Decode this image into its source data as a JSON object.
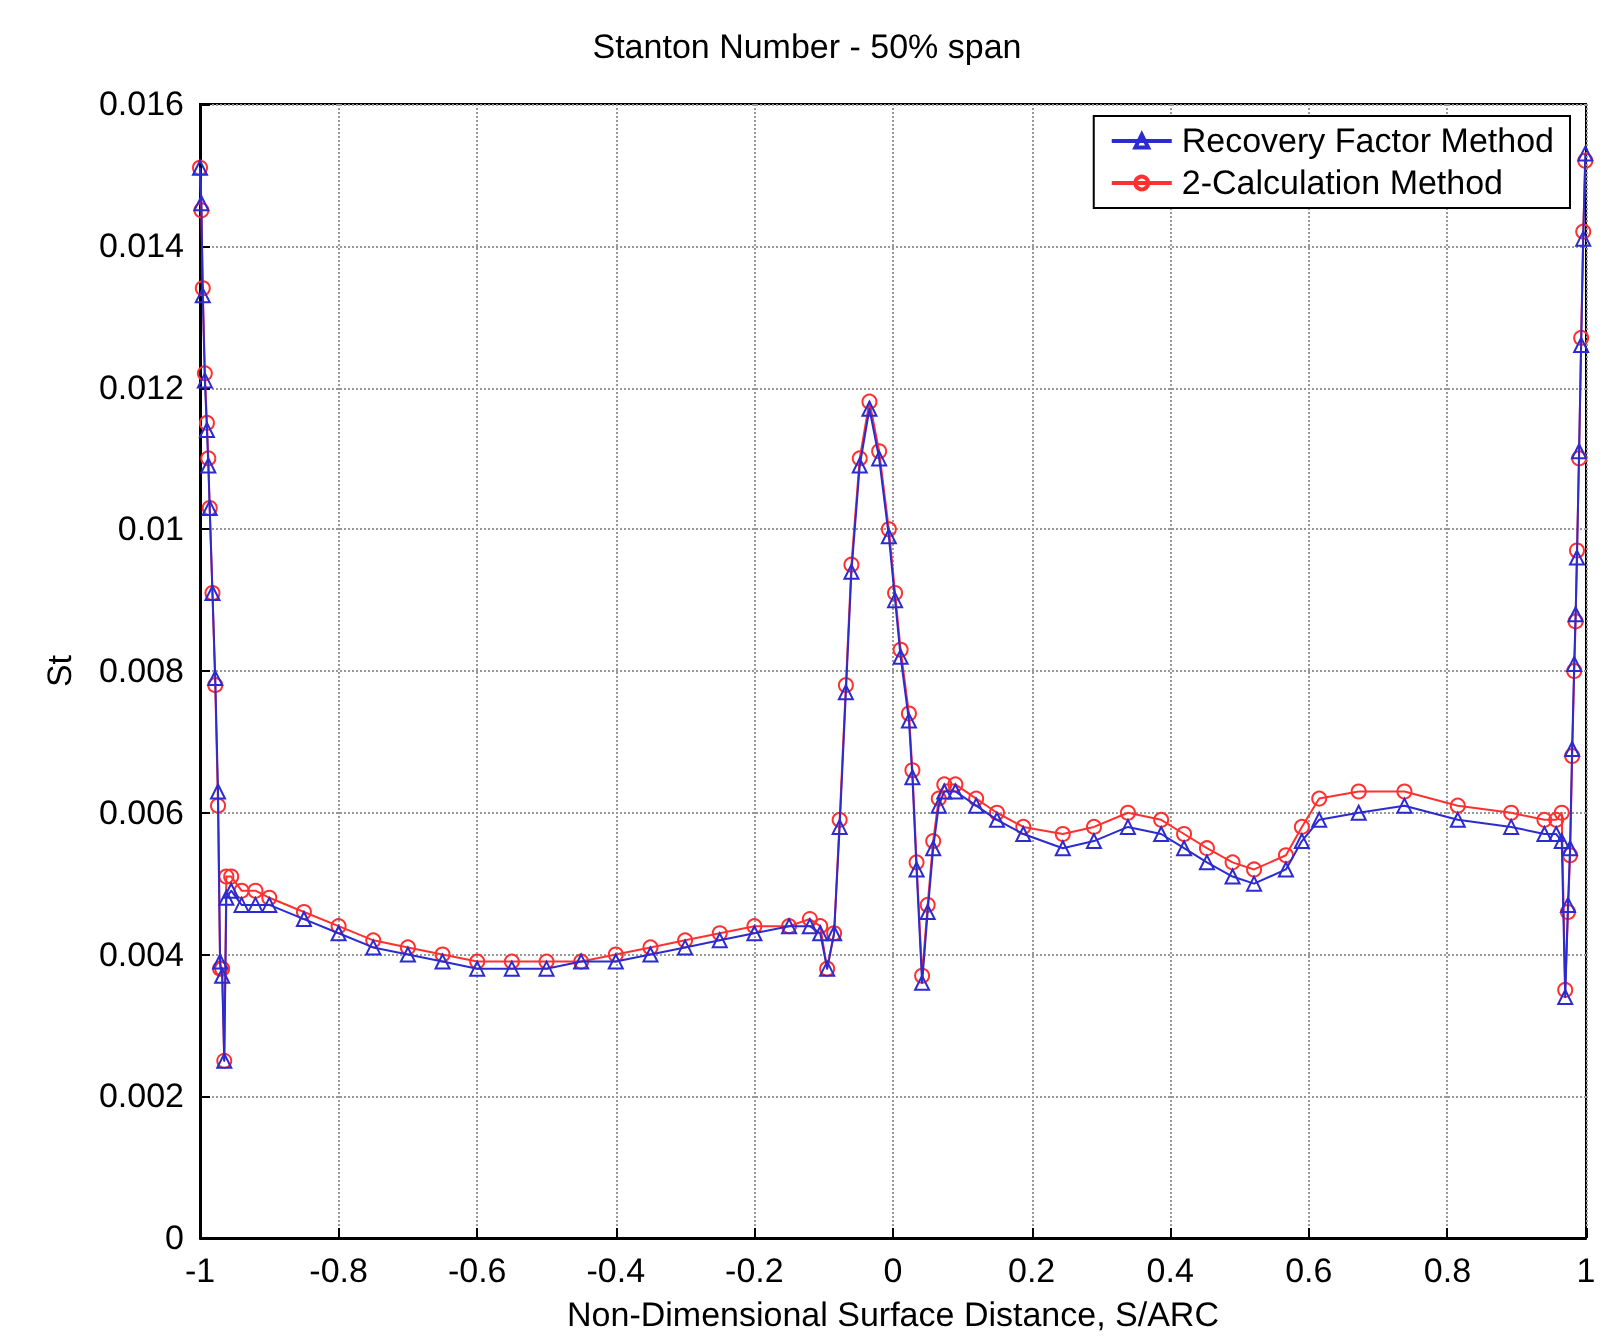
{
  "chart_data": {
    "type": "line",
    "title": "Stanton Number - 50% span",
    "xlabel": "Non-Dimensional Surface Distance, S/ARC",
    "ylabel": "St",
    "x": [
      -1.0,
      -0.998,
      -0.996,
      -0.993,
      -0.99,
      -0.988,
      -0.986,
      -0.982,
      -0.978,
      -0.974,
      -0.971,
      -0.968,
      -0.965,
      -0.962,
      -0.955,
      -0.94,
      -0.92,
      -0.9,
      -0.85,
      -0.8,
      -0.75,
      -0.7,
      -0.65,
      -0.6,
      -0.55,
      -0.5,
      -0.45,
      -0.4,
      -0.35,
      -0.3,
      -0.25,
      -0.2,
      -0.15,
      -0.12,
      -0.105,
      -0.095,
      -0.085,
      -0.077,
      -0.068,
      -0.06,
      -0.048,
      -0.034,
      -0.02,
      -0.006,
      0.003,
      0.011,
      0.023,
      0.028,
      0.034,
      0.042,
      0.05,
      0.058,
      0.066,
      0.074,
      0.09,
      0.12,
      0.15,
      0.188,
      0.245,
      0.29,
      0.339,
      0.387,
      0.42,
      0.453,
      0.49,
      0.521,
      0.567,
      0.59,
      0.615,
      0.672,
      0.738,
      0.815,
      0.892,
      0.94,
      0.957,
      0.965,
      0.97,
      0.974,
      0.977,
      0.98,
      0.983,
      0.985,
      0.987,
      0.99,
      0.993,
      0.996,
      0.999
    ],
    "series": [
      {
        "name": "Recovery Factor Method",
        "color": "#2b2bd0",
        "marker": "triangle",
        "values": [
          0.0151,
          0.0146,
          0.0133,
          0.0121,
          0.0114,
          0.0109,
          0.0103,
          0.0091,
          0.0079,
          0.0063,
          0.0039,
          0.0037,
          0.0025,
          0.0048,
          0.0049,
          0.0047,
          0.0047,
          0.0047,
          0.0045,
          0.0043,
          0.0041,
          0.004,
          0.0039,
          0.0038,
          0.0038,
          0.0038,
          0.0039,
          0.0039,
          0.004,
          0.0041,
          0.0042,
          0.0043,
          0.0044,
          0.0044,
          0.0043,
          0.0038,
          0.0043,
          0.0058,
          0.0077,
          0.0094,
          0.0109,
          0.0117,
          0.011,
          0.0099,
          0.009,
          0.0082,
          0.0073,
          0.0065,
          0.0052,
          0.0036,
          0.0046,
          0.0055,
          0.0061,
          0.0063,
          0.0063,
          0.0061,
          0.0059,
          0.0057,
          0.0055,
          0.0056,
          0.0058,
          0.0057,
          0.0055,
          0.0053,
          0.0051,
          0.005,
          0.0052,
          0.0056,
          0.0059,
          0.006,
          0.0061,
          0.0059,
          0.0058,
          0.0057,
          0.0057,
          0.0056,
          0.0034,
          0.0047,
          0.0055,
          0.0069,
          0.0081,
          0.0088,
          0.0096,
          0.0111,
          0.0126,
          0.0141,
          0.0153
        ]
      },
      {
        "name": "2-Calculation Method",
        "color": "#ff3030",
        "marker": "circle",
        "values": [
          0.0151,
          0.0145,
          0.0134,
          0.0122,
          0.0115,
          0.011,
          0.0103,
          0.0091,
          0.0078,
          0.0061,
          0.0038,
          0.0038,
          0.0025,
          0.0051,
          0.0051,
          0.0049,
          0.0049,
          0.0048,
          0.0046,
          0.0044,
          0.0042,
          0.0041,
          0.004,
          0.0039,
          0.0039,
          0.0039,
          0.0039,
          0.004,
          0.0041,
          0.0042,
          0.0043,
          0.0044,
          0.0044,
          0.0045,
          0.0044,
          0.0038,
          0.0043,
          0.0059,
          0.0078,
          0.0095,
          0.011,
          0.0118,
          0.0111,
          0.01,
          0.0091,
          0.0083,
          0.0074,
          0.0066,
          0.0053,
          0.0037,
          0.0047,
          0.0056,
          0.0062,
          0.0064,
          0.0064,
          0.0062,
          0.006,
          0.0058,
          0.0057,
          0.0058,
          0.006,
          0.0059,
          0.0057,
          0.0055,
          0.0053,
          0.0052,
          0.0054,
          0.0058,
          0.0062,
          0.0063,
          0.0063,
          0.0061,
          0.006,
          0.0059,
          0.0059,
          0.006,
          0.0035,
          0.0046,
          0.0054,
          0.0068,
          0.008,
          0.0087,
          0.0097,
          0.011,
          0.0127,
          0.0142,
          0.0152
        ]
      }
    ],
    "xlim": [
      -1,
      1
    ],
    "xticks": [
      -1,
      -0.8,
      -0.6,
      -0.4,
      -0.2,
      0,
      0.2,
      0.4,
      0.6,
      0.8,
      1
    ],
    "ylim": [
      0,
      0.016
    ],
    "yticks": [
      0,
      0.002,
      0.004,
      0.006,
      0.008,
      0.01,
      0.012,
      0.014,
      0.016
    ],
    "grid": true,
    "legend": "top right",
    "line_style": "solid"
  }
}
